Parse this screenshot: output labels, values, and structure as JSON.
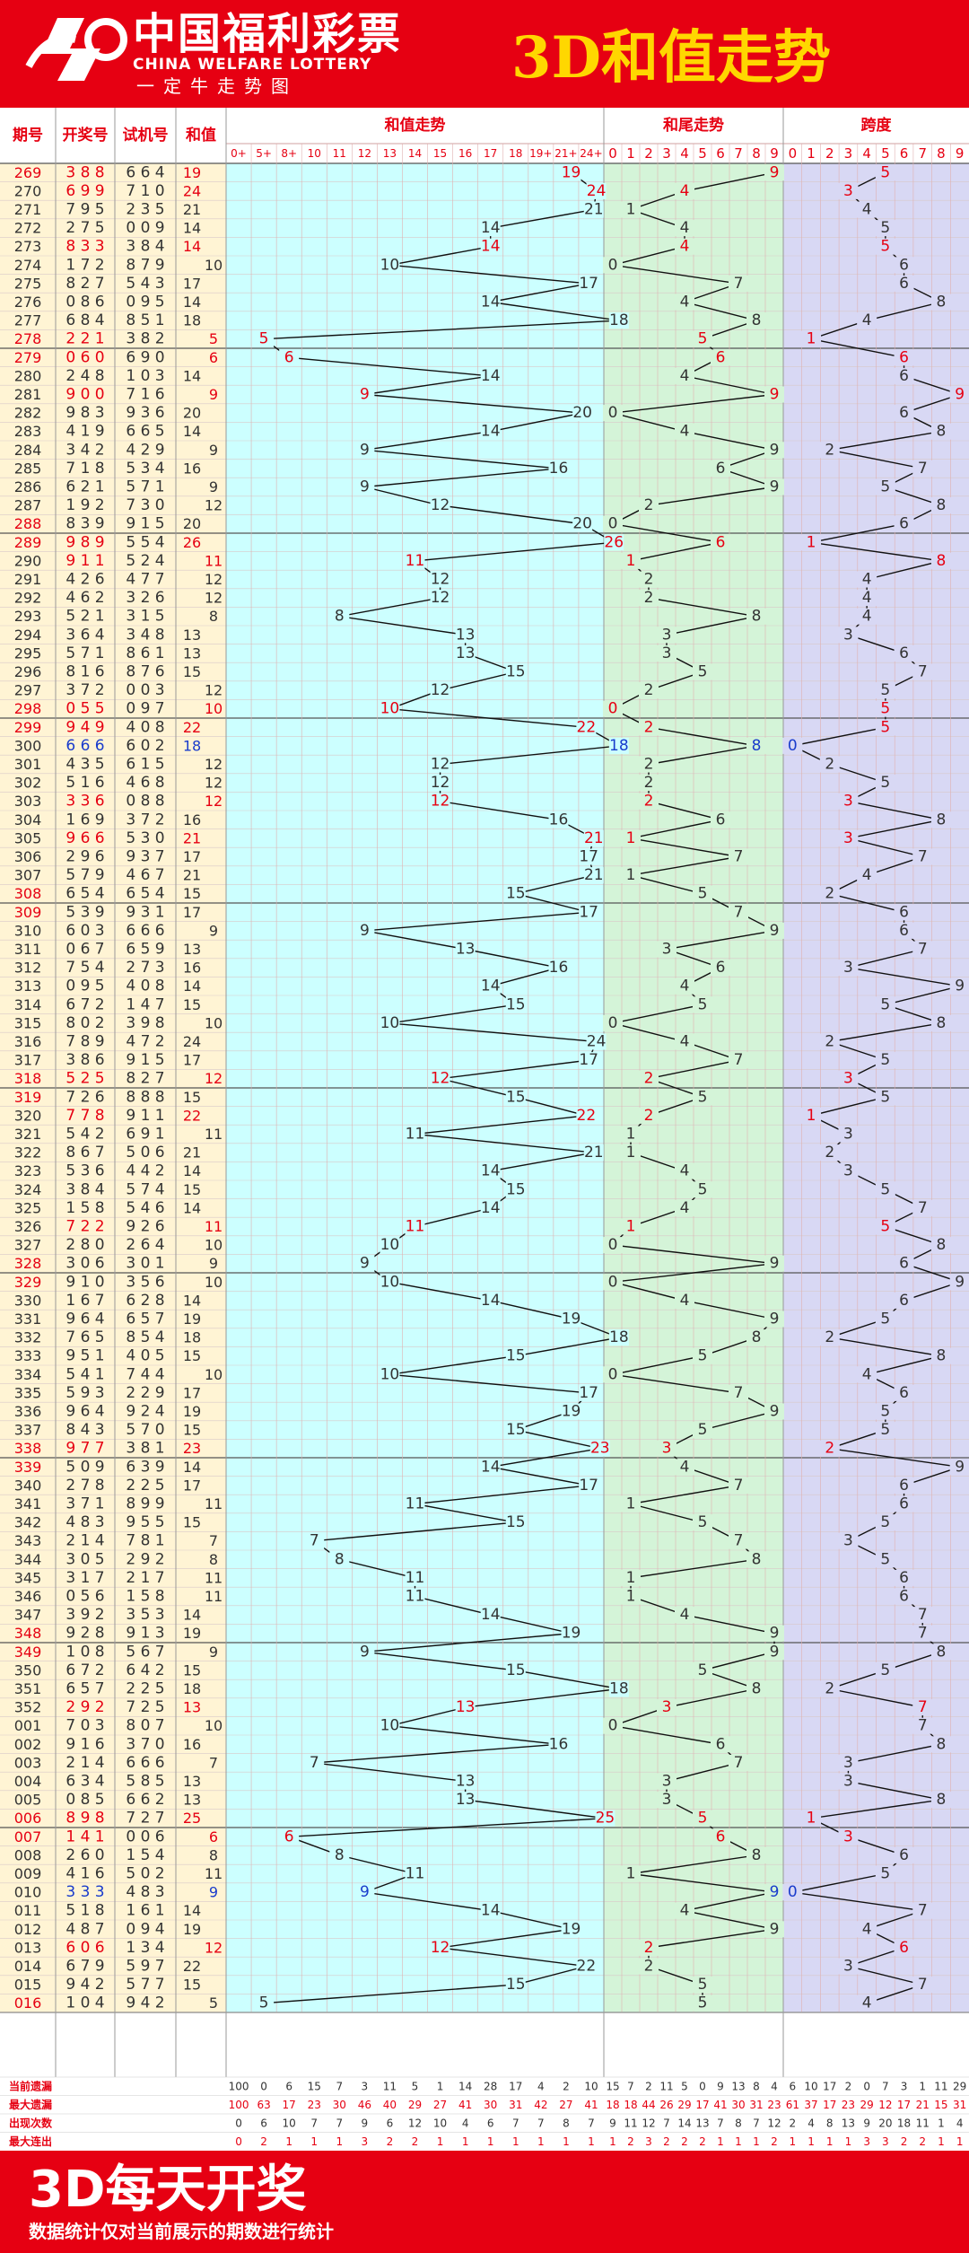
{
  "header": {
    "logo_cn": "中国福利彩票",
    "logo_en": "CHINA WELFARE LOTTERY",
    "slogan": "一定牛走势图",
    "title": "3D和值走势"
  },
  "footer": {
    "main": "3D每天开奖",
    "note": "数据统计仅对当前展示的期数进行统计"
  },
  "colors": {
    "brand_red": "#e60012",
    "title_yellow": "#ffd700",
    "sum_bg": "#ccffff",
    "tail_bg": "#d4f4d8",
    "span_bg": "#d8d8f4",
    "left_bg": "#fff4d4"
  },
  "table": {
    "headers": [
      "期号",
      "开奖号",
      "试机号",
      "和值"
    ],
    "sections": [
      "和值走势",
      "和尾走势",
      "跨度"
    ],
    "sum_subheaders": [
      "0+",
      "5+",
      "8+",
      "10",
      "11",
      "12",
      "13",
      "14",
      "15",
      "16",
      "17",
      "18",
      "19+",
      "21+",
      "24+"
    ],
    "digit_subheaders": [
      "0",
      "1",
      "2",
      "3",
      "4",
      "5",
      "6",
      "7",
      "8",
      "9"
    ],
    "stats_labels": [
      "当前遗漏",
      "最大遗漏",
      "出现次数",
      "最大连出"
    ],
    "stats_sum": [
      [
        "100",
        "0",
        "6",
        "15",
        "7",
        "3",
        "11",
        "5",
        "1",
        "14",
        "28",
        "17",
        "4",
        "2",
        "10"
      ],
      [
        "100",
        "63",
        "17",
        "23",
        "30",
        "46",
        "40",
        "29",
        "27",
        "41",
        "30",
        "31",
        "42",
        "27",
        "41"
      ],
      [
        "0",
        "6",
        "10",
        "7",
        "7",
        "9",
        "6",
        "12",
        "10",
        "4",
        "6",
        "7",
        "7",
        "8",
        "7"
      ],
      [
        "0",
        "2",
        "1",
        "1",
        "1",
        "3",
        "2",
        "2",
        "1",
        "1",
        "1",
        "1",
        "1",
        "1",
        "1"
      ]
    ],
    "stats_tail": [
      [
        "15",
        "7",
        "2",
        "11",
        "5",
        "0",
        "9",
        "13",
        "8",
        "4"
      ],
      [
        "18",
        "18",
        "44",
        "26",
        "29",
        "17",
        "41",
        "30",
        "31",
        "23"
      ],
      [
        "9",
        "11",
        "12",
        "7",
        "14",
        "13",
        "7",
        "8",
        "7",
        "12"
      ],
      [
        "1",
        "2",
        "3",
        "2",
        "2",
        "2",
        "1",
        "1",
        "1",
        "2"
      ]
    ],
    "stats_span": [
      [
        "6",
        "10",
        "17",
        "2",
        "0",
        "7",
        "3",
        "1",
        "11",
        "29"
      ],
      [
        "61",
        "37",
        "17",
        "23",
        "29",
        "12",
        "17",
        "21",
        "15",
        "31"
      ],
      [
        "2",
        "4",
        "8",
        "13",
        "9",
        "20",
        "18",
        "11",
        "1",
        "4"
      ],
      [
        "1",
        "1",
        "1",
        "1",
        "3",
        "3",
        "2",
        "2",
        "1",
        "1"
      ]
    ]
  },
  "chart_data": {
    "type": "line",
    "series": [
      {
        "name": "和值走势"
      },
      {
        "name": "和尾走势"
      },
      {
        "name": "跨度"
      }
    ],
    "rows": [
      [
        "269",
        "388",
        "664",
        "19"
      ],
      [
        "270",
        "699",
        "710",
        "24"
      ],
      [
        "271",
        "795",
        "235",
        "21"
      ],
      [
        "272",
        "275",
        "009",
        "14"
      ],
      [
        "273",
        "833",
        "384",
        "14"
      ],
      [
        "274",
        "172",
        "879",
        "10"
      ],
      [
        "275",
        "827",
        "543",
        "17"
      ],
      [
        "276",
        "086",
        "095",
        "14"
      ],
      [
        "277",
        "684",
        "851",
        "18"
      ],
      [
        "278",
        "221",
        "382",
        "5"
      ],
      [
        "279",
        "060",
        "690",
        "6"
      ],
      [
        "280",
        "248",
        "103",
        "14"
      ],
      [
        "281",
        "900",
        "716",
        "9"
      ],
      [
        "282",
        "983",
        "936",
        "20"
      ],
      [
        "283",
        "419",
        "665",
        "14"
      ],
      [
        "284",
        "342",
        "429",
        "9"
      ],
      [
        "285",
        "718",
        "534",
        "16"
      ],
      [
        "286",
        "621",
        "571",
        "9"
      ],
      [
        "287",
        "192",
        "730",
        "12"
      ],
      [
        "288",
        "839",
        "915",
        "20"
      ],
      [
        "289",
        "989",
        "554",
        "26"
      ],
      [
        "290",
        "911",
        "524",
        "11"
      ],
      [
        "291",
        "426",
        "477",
        "12"
      ],
      [
        "292",
        "462",
        "326",
        "12"
      ],
      [
        "293",
        "521",
        "315",
        "8"
      ],
      [
        "294",
        "364",
        "348",
        "13"
      ],
      [
        "295",
        "571",
        "861",
        "13"
      ],
      [
        "296",
        "816",
        "876",
        "15"
      ],
      [
        "297",
        "372",
        "003",
        "12"
      ],
      [
        "298",
        "055",
        "097",
        "10"
      ],
      [
        "299",
        "949",
        "408",
        "22"
      ],
      [
        "300",
        "666",
        "602",
        "18"
      ],
      [
        "301",
        "435",
        "615",
        "12"
      ],
      [
        "302",
        "516",
        "468",
        "12"
      ],
      [
        "303",
        "336",
        "088",
        "12"
      ],
      [
        "304",
        "169",
        "372",
        "16"
      ],
      [
        "305",
        "966",
        "530",
        "21"
      ],
      [
        "306",
        "296",
        "937",
        "17"
      ],
      [
        "307",
        "579",
        "467",
        "21"
      ],
      [
        "308",
        "654",
        "654",
        "15"
      ],
      [
        "309",
        "539",
        "931",
        "17"
      ],
      [
        "310",
        "603",
        "666",
        "9"
      ],
      [
        "311",
        "067",
        "659",
        "13"
      ],
      [
        "312",
        "754",
        "273",
        "16"
      ],
      [
        "313",
        "095",
        "408",
        "14"
      ],
      [
        "314",
        "672",
        "147",
        "15"
      ],
      [
        "315",
        "802",
        "398",
        "10"
      ],
      [
        "316",
        "789",
        "472",
        "24"
      ],
      [
        "317",
        "386",
        "915",
        "17"
      ],
      [
        "318",
        "525",
        "827",
        "12"
      ],
      [
        "319",
        "726",
        "888",
        "15"
      ],
      [
        "320",
        "778",
        "911",
        "22"
      ],
      [
        "321",
        "542",
        "691",
        "11"
      ],
      [
        "322",
        "867",
        "506",
        "21"
      ],
      [
        "323",
        "536",
        "442",
        "14"
      ],
      [
        "324",
        "384",
        "574",
        "15"
      ],
      [
        "325",
        "158",
        "546",
        "14"
      ],
      [
        "326",
        "722",
        "926",
        "11"
      ],
      [
        "327",
        "280",
        "264",
        "10"
      ],
      [
        "328",
        "306",
        "301",
        "9"
      ],
      [
        "329",
        "910",
        "356",
        "10"
      ],
      [
        "330",
        "167",
        "628",
        "14"
      ],
      [
        "331",
        "964",
        "657",
        "19"
      ],
      [
        "332",
        "765",
        "854",
        "18"
      ],
      [
        "333",
        "951",
        "405",
        "15"
      ],
      [
        "334",
        "541",
        "744",
        "10"
      ],
      [
        "335",
        "593",
        "229",
        "17"
      ],
      [
        "336",
        "964",
        "924",
        "19"
      ],
      [
        "337",
        "843",
        "570",
        "15"
      ],
      [
        "338",
        "977",
        "381",
        "23"
      ],
      [
        "339",
        "509",
        "639",
        "14"
      ],
      [
        "340",
        "278",
        "225",
        "17"
      ],
      [
        "341",
        "371",
        "899",
        "11"
      ],
      [
        "342",
        "483",
        "955",
        "15"
      ],
      [
        "343",
        "214",
        "781",
        "7"
      ],
      [
        "344",
        "305",
        "292",
        "8"
      ],
      [
        "345",
        "317",
        "217",
        "11"
      ],
      [
        "346",
        "056",
        "158",
        "11"
      ],
      [
        "347",
        "392",
        "353",
        "14"
      ],
      [
        "348",
        "928",
        "913",
        "19"
      ],
      [
        "349",
        "108",
        "567",
        "9"
      ],
      [
        "350",
        "672",
        "642",
        "15"
      ],
      [
        "351",
        "657",
        "225",
        "18"
      ],
      [
        "352",
        "292",
        "725",
        "13"
      ],
      [
        "001",
        "703",
        "807",
        "10"
      ],
      [
        "002",
        "916",
        "370",
        "16"
      ],
      [
        "003",
        "214",
        "666",
        "7"
      ],
      [
        "004",
        "634",
        "585",
        "13"
      ],
      [
        "005",
        "085",
        "662",
        "13"
      ],
      [
        "006",
        "898",
        "727",
        "25"
      ],
      [
        "007",
        "141",
        "006",
        "6"
      ],
      [
        "008",
        "260",
        "154",
        "8"
      ],
      [
        "009",
        "416",
        "502",
        "11"
      ],
      [
        "010",
        "333",
        "483",
        "9"
      ],
      [
        "011",
        "518",
        "161",
        "14"
      ],
      [
        "012",
        "487",
        "094",
        "19"
      ],
      [
        "013",
        "606",
        "134",
        "12"
      ],
      [
        "014",
        "679",
        "597",
        "22"
      ],
      [
        "015",
        "942",
        "577",
        "15"
      ],
      [
        "016",
        "104",
        "942",
        "5"
      ]
    ]
  }
}
